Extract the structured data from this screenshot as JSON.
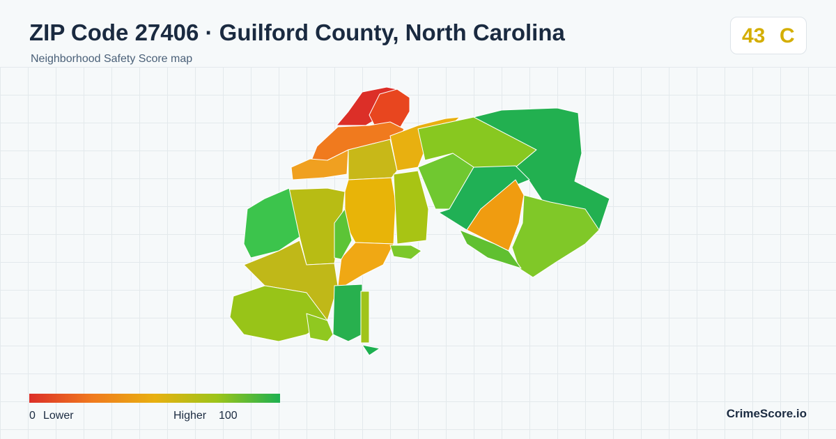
{
  "header": {
    "title": "ZIP Code 27406 · Guilford County, North Carolina",
    "subtitle": "Neighborhood Safety Score map"
  },
  "score": {
    "value": "43",
    "grade": "C"
  },
  "legend": {
    "min": "0",
    "min_label": "Lower",
    "max_label": "Higher",
    "max": "100"
  },
  "brand": "CrimeScore.io"
}
